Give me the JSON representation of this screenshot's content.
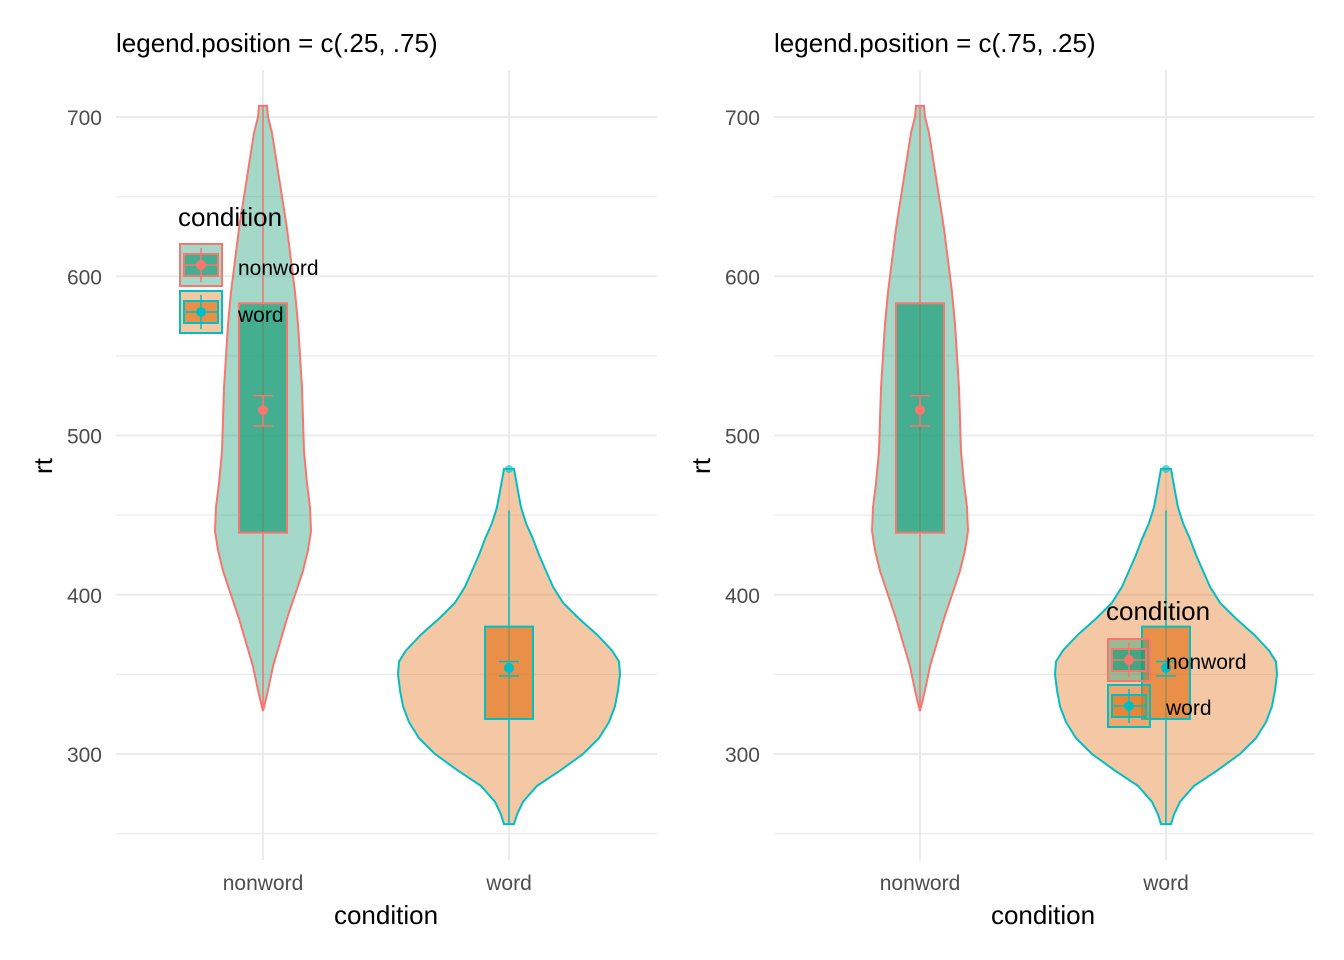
{
  "chart_data": [
    {
      "type": "violin",
      "title": "legend.position = c(.25, .75)",
      "xlabel": "condition",
      "ylabel": "rt",
      "categories": [
        "nonword",
        "word"
      ],
      "yticks": [
        300,
        400,
        500,
        600,
        700
      ],
      "ylim": [
        240,
        730
      ],
      "grid": true,
      "legend": {
        "title": "condition",
        "entries": [
          "nonword",
          "word"
        ],
        "placement": "top-left"
      },
      "series": [
        {
          "name": "nonword",
          "violin_range": [
            327,
            707
          ],
          "box": {
            "q1": 439,
            "median": 439,
            "q3": 583
          },
          "mean": 516,
          "mean_ci": [
            506,
            525
          ]
        },
        {
          "name": "word",
          "violin_range": [
            256,
            479
          ],
          "box": {
            "q1": 322,
            "median": 322,
            "q3": 380
          },
          "whiskers": [
            256,
            453
          ],
          "outliers": [
            479
          ],
          "mean": 354,
          "mean_ci": [
            349,
            358
          ]
        }
      ]
    },
    {
      "type": "violin",
      "title": "legend.position = c(.75, .25)",
      "xlabel": "condition",
      "ylabel": "rt",
      "categories": [
        "nonword",
        "word"
      ],
      "yticks": [
        300,
        400,
        500,
        600,
        700
      ],
      "ylim": [
        240,
        730
      ],
      "grid": true,
      "legend": {
        "title": "condition",
        "entries": [
          "nonword",
          "word"
        ],
        "placement": "bottom-right"
      },
      "series": [
        {
          "name": "nonword",
          "violin_range": [
            327,
            707
          ],
          "box": {
            "q1": 439,
            "median": 439,
            "q3": 583
          },
          "mean": 516,
          "mean_ci": [
            506,
            525
          ]
        },
        {
          "name": "word",
          "violin_range": [
            256,
            479
          ],
          "box": {
            "q1": 322,
            "median": 322,
            "q3": 380
          },
          "whiskers": [
            256,
            453
          ],
          "outliers": [
            479
          ],
          "mean": 354,
          "mean_ci": [
            349,
            358
          ]
        }
      ]
    }
  ],
  "colors": {
    "nonword_fill": "#1b9e77",
    "word_fill": "#e6761f",
    "nonword_line": "#f8766d",
    "word_line": "#00bfc4",
    "grid": "#ebebeb",
    "tick_text": "#4d4d4d"
  }
}
